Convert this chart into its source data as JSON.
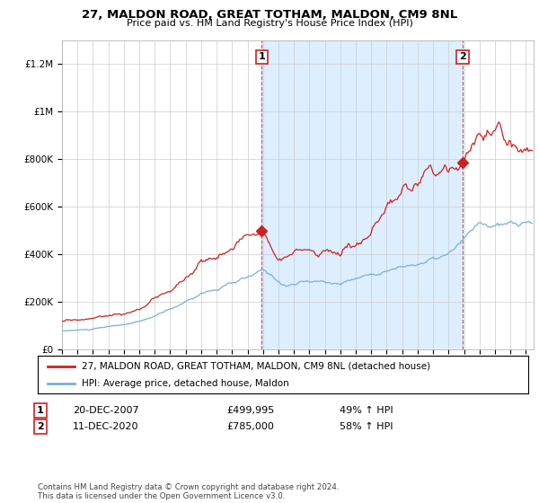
{
  "title": "27, MALDON ROAD, GREAT TOTHAM, MALDON, CM9 8NL",
  "subtitle": "Price paid vs. HM Land Registry's House Price Index (HPI)",
  "legend_line1": "27, MALDON ROAD, GREAT TOTHAM, MALDON, CM9 8NL (detached house)",
  "legend_line2": "HPI: Average price, detached house, Maldon",
  "transaction1_date": "20-DEC-2007",
  "transaction1_price": "£499,995",
  "transaction1_hpi": "49% ↑ HPI",
  "transaction1_year": 2007.917,
  "transaction1_value": 499995,
  "transaction2_date": "11-DEC-2020",
  "transaction2_price": "£785,000",
  "transaction2_hpi": "58% ↑ HPI",
  "transaction2_year": 2020.917,
  "transaction2_value": 785000,
  "red_line_color": "#cc2222",
  "blue_line_color": "#7ab0d4",
  "shade_color": "#ddeeff",
  "background_color": "#ffffff",
  "grid_color": "#cccccc",
  "ylim": [
    0,
    1300000
  ],
  "xlim_start": 1995,
  "xlim_end": 2025.5,
  "footer": "Contains HM Land Registry data © Crown copyright and database right 2024.\nThis data is licensed under the Open Government Licence v3.0."
}
